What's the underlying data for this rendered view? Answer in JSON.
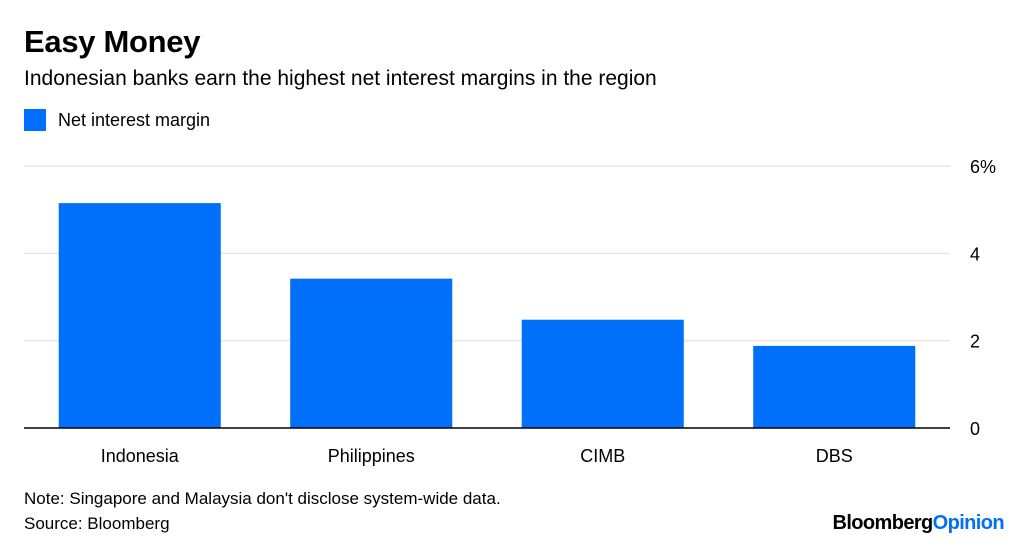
{
  "chart_data": {
    "type": "bar",
    "title": "Easy Money",
    "subtitle": "Indonesian banks earn the highest net interest margins in the region",
    "categories": [
      "Indonesia",
      "Philippines",
      "CIMB",
      "DBS"
    ],
    "series": [
      {
        "name": "Net interest margin",
        "values": [
          5.15,
          3.42,
          2.48,
          1.88
        ],
        "color": "#0070fa"
      }
    ],
    "yaxis": {
      "position": "right",
      "ylim": [
        0,
        6
      ],
      "ticks": [
        0,
        2,
        4,
        6
      ],
      "tick_labels": [
        "0",
        "2",
        "4",
        "6%"
      ]
    },
    "xlabel": "",
    "ylabel": "",
    "grid": true,
    "legend_position": "top-left"
  },
  "notes": {
    "note": "Note: Singapore and Malaysia don't disclose system-wide data.",
    "source": "Source: Bloomberg"
  },
  "branding": {
    "logo_text_1": "Bloomberg",
    "logo_text_2": "Opinion",
    "logo_color_1": "#000000",
    "logo_color_2": "#0070fa"
  },
  "colors": {
    "grid": "#e6e6e6",
    "baseline": "#000000"
  }
}
